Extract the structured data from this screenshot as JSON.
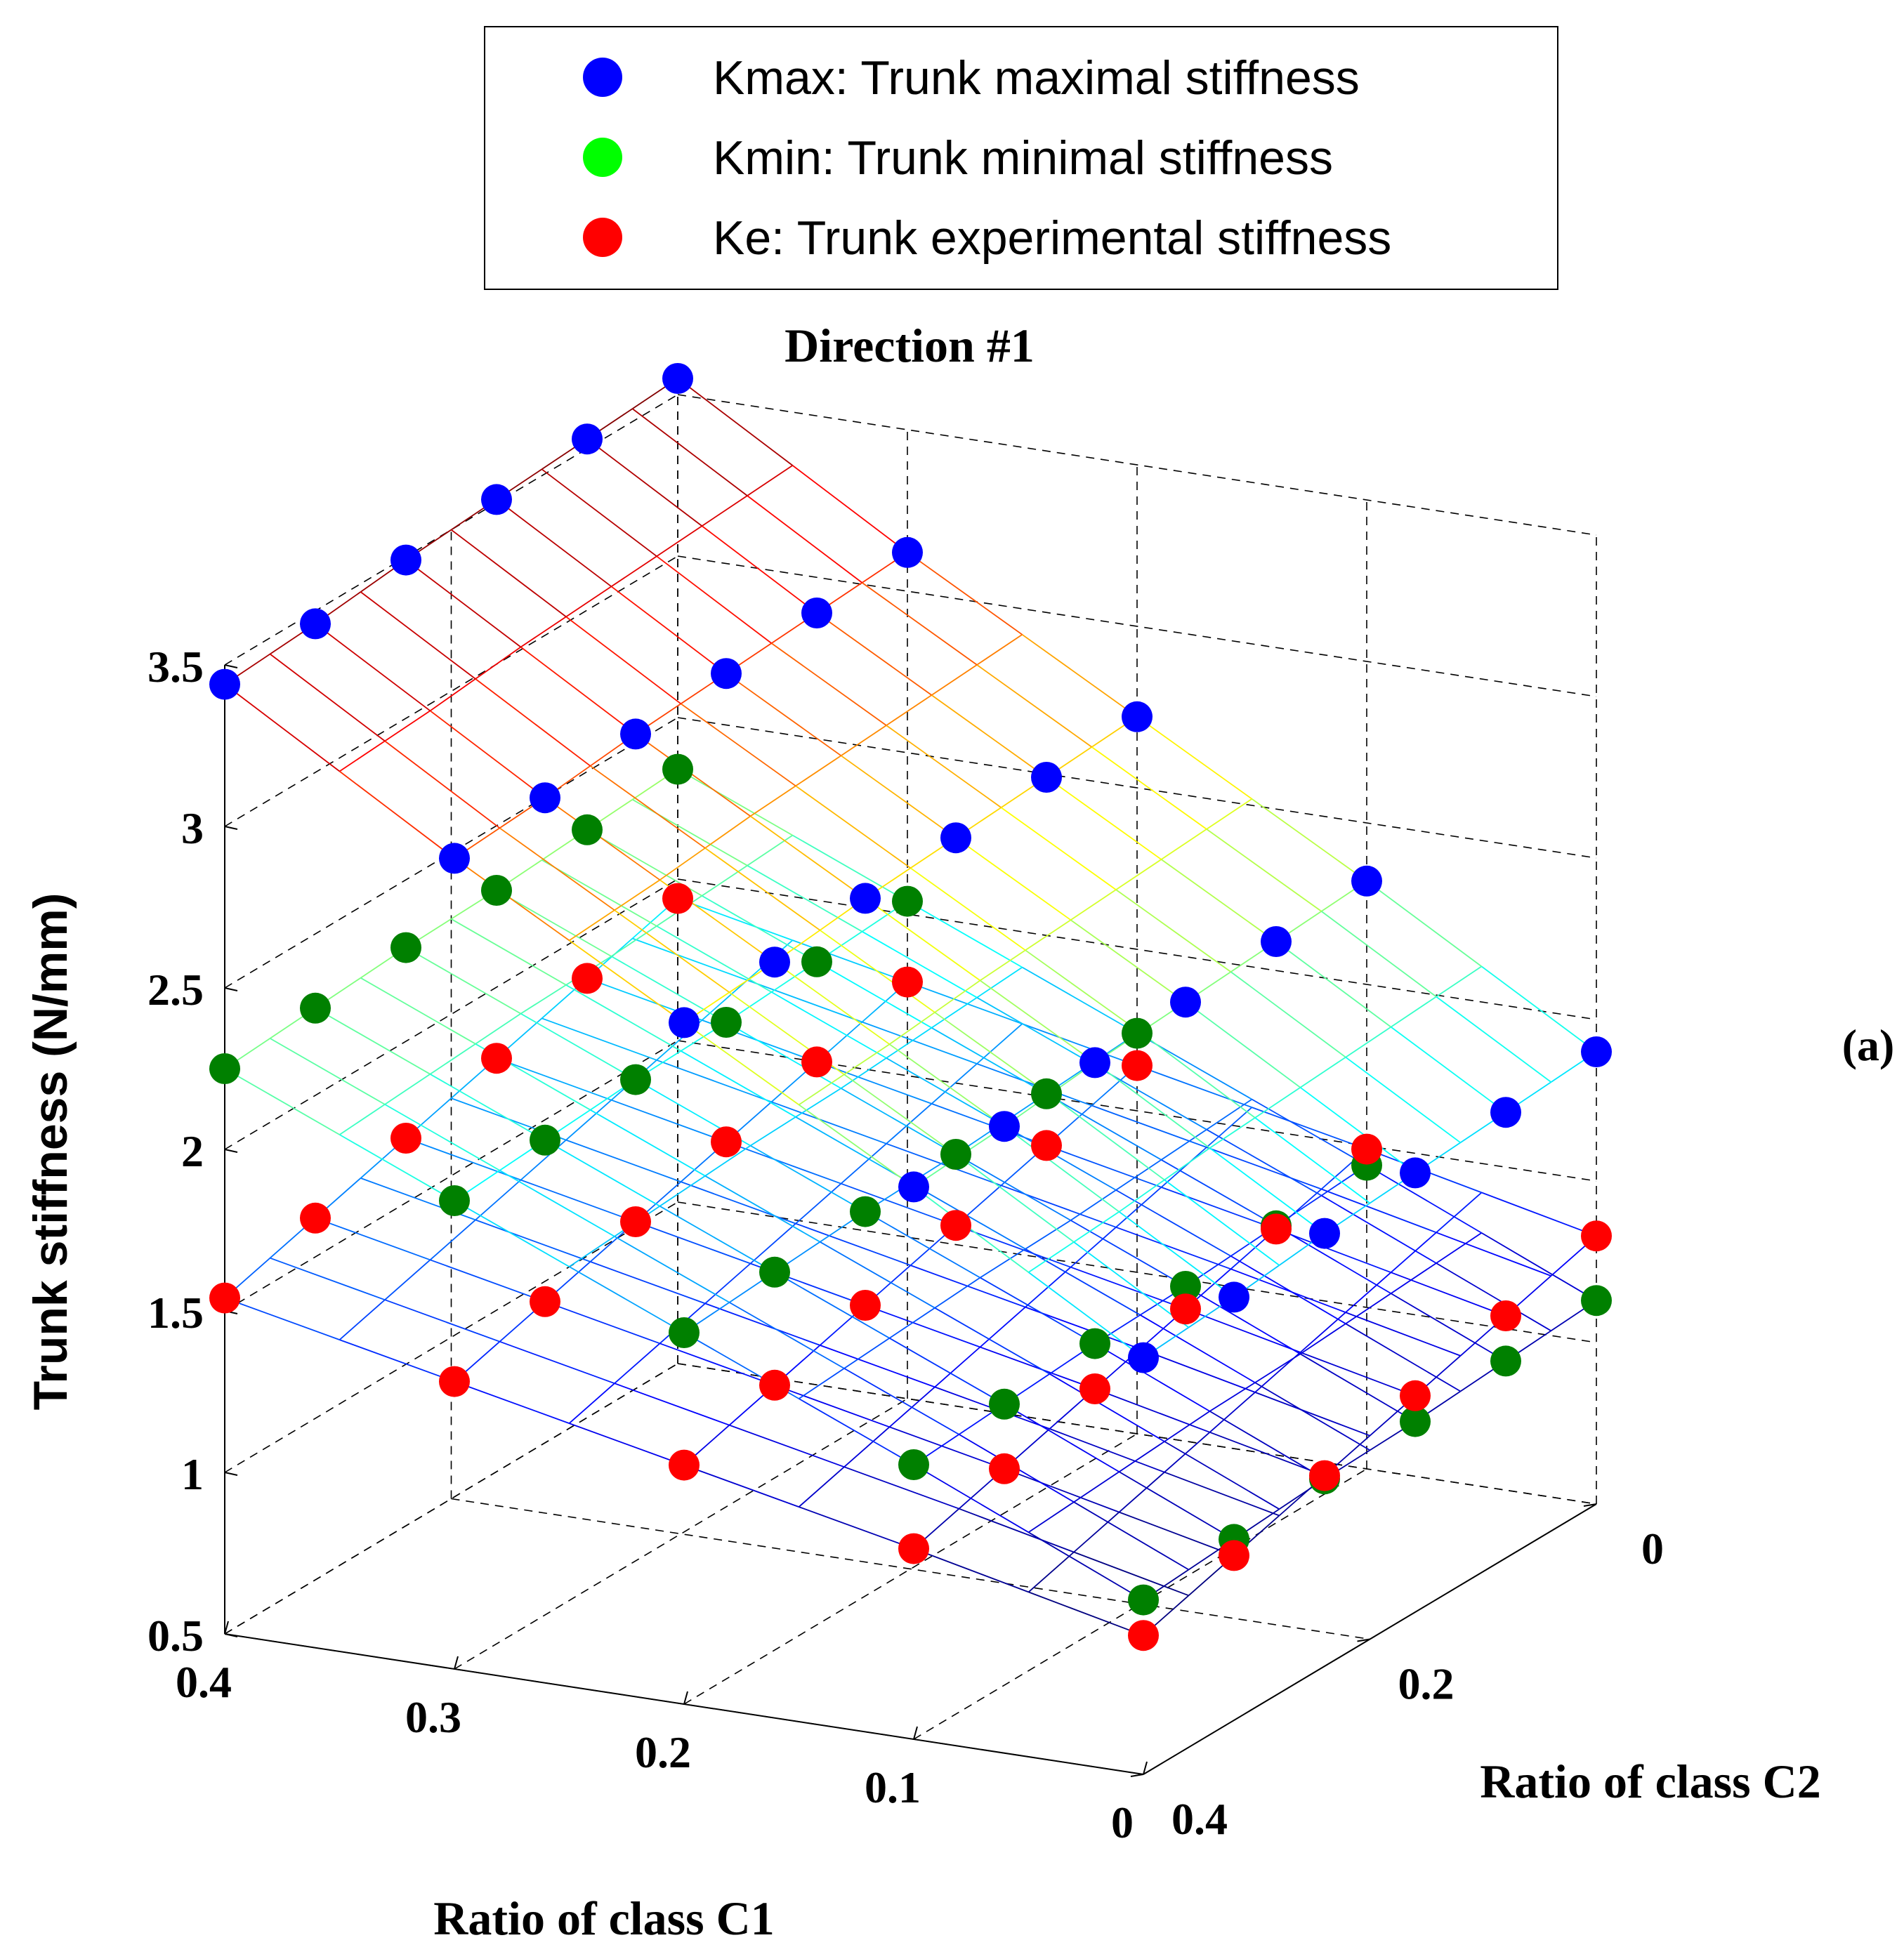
{
  "chart_data": {
    "type": "scatter",
    "title": "Direction #1",
    "panel_label": "(a)",
    "xlabel": "Ratio of class C1",
    "ylabel": "Ratio of class C2",
    "zlabel": "Trunk stiffness (N/mm)",
    "xlim": [
      0,
      0.4
    ],
    "ylim": [
      0,
      0.4
    ],
    "zlim": [
      0.5,
      3.5
    ],
    "x_ticks": [
      "0",
      "0.1",
      "0.2",
      "0.3",
      "0.4"
    ],
    "y_ticks": [
      "0",
      "0.2",
      "0.4"
    ],
    "z_ticks": [
      "0.5",
      "1",
      "1.5",
      "2",
      "2.5",
      "3",
      "3.5"
    ],
    "grid": true,
    "legend_position": "top",
    "mesh_grid": {
      "c1": [
        0,
        0.1,
        0.2,
        0.3,
        0.4
      ],
      "c2": [
        0,
        0.08,
        0.16,
        0.24,
        0.32,
        0.4
      ]
    },
    "series": [
      {
        "name": "Kmax: Trunk maximal stiffness",
        "color": "#0000ff",
        "c2": [
          0,
          0.08,
          0.16,
          0.24,
          0.32,
          0.4
        ],
        "rows": [
          {
            "c1": 0.4,
            "values": [
              3.55,
              3.53,
              3.51,
              3.49,
              3.46,
              3.44
            ]
          },
          {
            "c1": 0.3,
            "values": [
              3.12,
              3.1,
              3.08,
              3.06,
              3.03,
              3.01
            ]
          },
          {
            "c1": 0.2,
            "values": [
              2.72,
              2.7,
              2.68,
              2.66,
              2.63,
              2.61
            ]
          },
          {
            "c1": 0.1,
            "values": [
              2.32,
              2.3,
              2.28,
              2.26,
              2.23,
              2.21
            ]
          },
          {
            "c1": 0.0,
            "values": [
              1.9,
              1.88,
              1.86,
              1.84,
              1.81,
              1.79
            ]
          }
        ]
      },
      {
        "name": "Kmin: Trunk minimal stiffness",
        "color": "#00ff00",
        "marker_color": "#008000",
        "c2": [
          0,
          0.08,
          0.16,
          0.24,
          0.32,
          0.4
        ],
        "rows": [
          {
            "c1": 0.4,
            "values": [
              2.34,
              2.32,
              2.3,
              2.29,
              2.27,
              2.25
            ]
          },
          {
            "c1": 0.3,
            "values": [
              2.04,
              2.02,
              2.0,
              1.99,
              1.97,
              1.95
            ]
          },
          {
            "c1": 0.2,
            "values": [
              1.74,
              1.72,
              1.7,
              1.69,
              1.67,
              1.65
            ]
          },
          {
            "c1": 0.1,
            "values": [
              1.44,
              1.42,
              1.4,
              1.39,
              1.37,
              1.35
            ]
          },
          {
            "c1": 0.0,
            "values": [
              1.13,
              1.11,
              1.09,
              1.08,
              1.06,
              1.04
            ]
          }
        ]
      },
      {
        "name": "Ke: Trunk experimental stiffness",
        "color": "#ff0000",
        "c2": [
          0,
          0.08,
          0.16,
          0.24,
          0.32,
          0.4
        ],
        "rows": [
          {
            "c1": 0.4,
            "values": [
              1.94,
              1.86,
              1.78,
              1.7,
              1.62,
              1.54
            ]
          },
          {
            "c1": 0.3,
            "values": [
              1.79,
              1.71,
              1.63,
              1.55,
              1.47,
              1.39
            ]
          },
          {
            "c1": 0.2,
            "values": [
              1.64,
              1.56,
              1.48,
              1.4,
              1.32,
              1.24
            ]
          },
          {
            "c1": 0.1,
            "values": [
              1.49,
              1.41,
              1.33,
              1.25,
              1.17,
              1.09
            ]
          },
          {
            "c1": 0.0,
            "values": [
              1.33,
              1.25,
              1.17,
              1.09,
              1.01,
              0.93
            ]
          }
        ]
      }
    ]
  }
}
